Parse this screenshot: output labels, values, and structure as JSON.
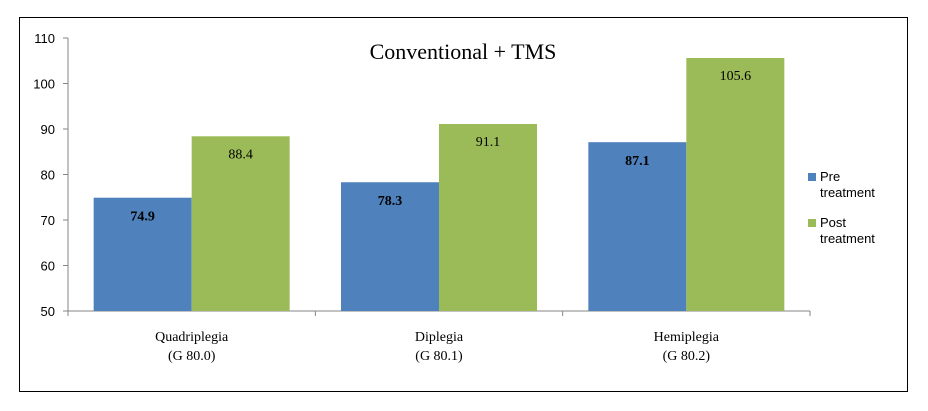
{
  "chart_data": {
    "type": "bar",
    "title": "Conventional + TMS",
    "categories": [
      [
        "Quadriplegia",
        "(G 80.0)"
      ],
      [
        "Diplegia",
        "(G 80.1)"
      ],
      [
        "Hemiplegia",
        "(G 80.2)"
      ]
    ],
    "series": [
      {
        "name": "Pre treatment",
        "legend_lines": [
          "Pre",
          "treatment"
        ],
        "values": [
          74.9,
          78.3,
          87.1
        ],
        "color": "#4F81BD"
      },
      {
        "name": "Post treatment",
        "legend_lines": [
          "Post",
          "treatment"
        ],
        "values": [
          88.4,
          91.1,
          105.6
        ],
        "color": "#9BBB59"
      }
    ],
    "ylim": [
      50,
      110
    ],
    "yticks": [
      50,
      60,
      70,
      80,
      90,
      100,
      110
    ],
    "xlabel": "",
    "ylabel": "",
    "grid": false,
    "legend_position": "right"
  }
}
